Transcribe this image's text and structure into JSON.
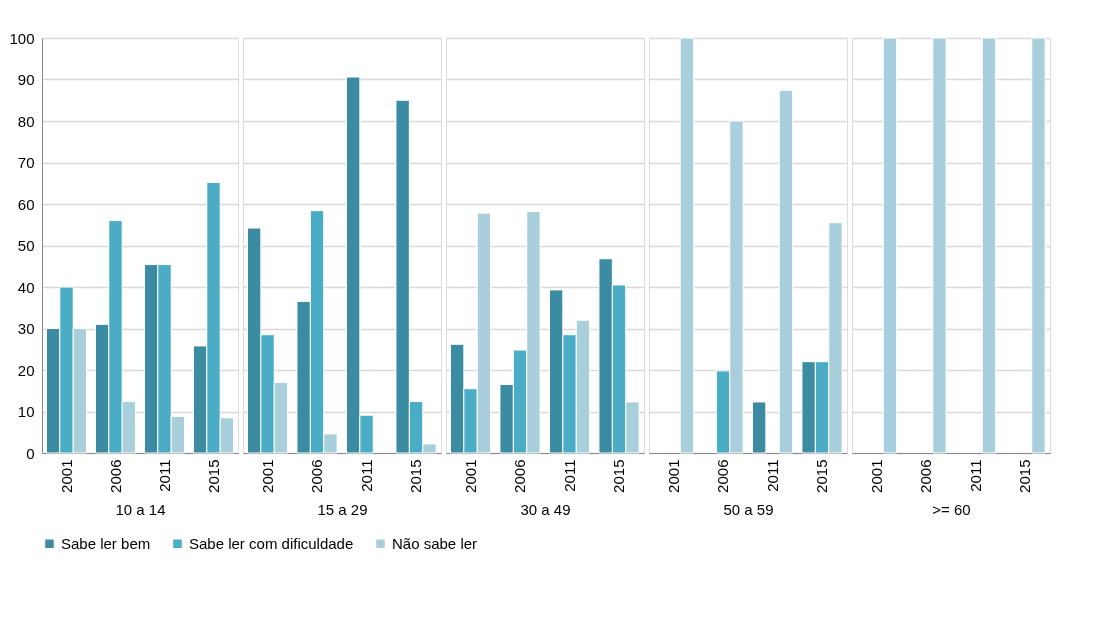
{
  "chart_data": [
    {
      "type": "bar",
      "xlabel": "10 a 14",
      "categories": [
        "2001",
        "2006",
        "2011",
        "2015"
      ],
      "ylim": [
        0,
        100
      ],
      "yticks": [
        0,
        10,
        20,
        30,
        40,
        50,
        60,
        70,
        80,
        90,
        100
      ],
      "grid": "y",
      "legend": "bottom",
      "series": [
        {
          "name": "Sabe ler bem",
          "color": "#3b8ba3",
          "values": [
            30,
            31,
            45.4,
            25.8
          ]
        },
        {
          "name": "Sabe ler com dificuldade",
          "color": "#4bacc6",
          "values": [
            40,
            56,
            45.4,
            65.2
          ]
        },
        {
          "name": "Não sabe ler",
          "color": "#a9cfdd",
          "values": [
            30,
            12.4,
            8.8,
            8.5
          ]
        }
      ]
    },
    {
      "type": "bar",
      "xlabel": "15 a 29",
      "categories": [
        "2001",
        "2006",
        "2011",
        "2015"
      ],
      "ylim": [
        0,
        100
      ],
      "yticks": [
        0,
        10,
        20,
        30,
        40,
        50,
        60,
        70,
        80,
        90,
        100
      ],
      "grid": "y",
      "legend": "bottom",
      "tick_labels": "x",
      "series": [
        {
          "name": "Sabe ler bem",
          "color": "#3b8ba3",
          "values": [
            54.2,
            36.5,
            90.6,
            85
          ]
        },
        {
          "name": "Sabe ler com dificuldade",
          "color": "#4bacc6",
          "values": [
            28.5,
            58.4,
            9.1,
            12.4
          ]
        },
        {
          "name": "Não sabe ler",
          "color": "#a9cfdd",
          "values": [
            17,
            4.6,
            null,
            2.2
          ]
        }
      ]
    },
    {
      "type": "bar",
      "xlabel": "30 a 49",
      "categories": [
        "2001",
        "2006",
        "2011",
        "2015"
      ],
      "ylim": [
        0,
        100
      ],
      "yticks": [
        0,
        10,
        20,
        30,
        40,
        50,
        60,
        70,
        80,
        90,
        100
      ],
      "grid": "y",
      "legend": "bottom",
      "tick_labels": "x",
      "series": [
        {
          "name": "Sabe ler bem",
          "color": "#3b8ba3",
          "values": [
            26.2,
            16.5,
            39.3,
            46.8
          ]
        },
        {
          "name": "Sabe ler com dificuldade",
          "color": "#4bacc6",
          "values": [
            15.5,
            24.8,
            28.5,
            40.5
          ]
        },
        {
          "name": "Não sabe ler",
          "color": "#a9cfdd",
          "values": [
            57.8,
            58.2,
            32,
            12.3
          ]
        }
      ]
    },
    {
      "type": "bar",
      "xlabel": "50 a 59",
      "categories": [
        "2001",
        "2006",
        "2011",
        "2015"
      ],
      "ylim": [
        0,
        100
      ],
      "yticks": [
        0,
        10,
        20,
        30,
        40,
        50,
        60,
        70,
        80,
        90,
        100
      ],
      "grid": "y",
      "legend": "bottom",
      "tick_labels": "x",
      "series": [
        {
          "name": "Sabe ler bem",
          "color": "#3b8ba3",
          "values": [
            null,
            null,
            12.3,
            22
          ]
        },
        {
          "name": "Sabe ler com dificuldade",
          "color": "#4bacc6",
          "values": [
            null,
            19.8,
            null,
            22
          ]
        },
        {
          "name": "Não sabe ler",
          "color": "#a9cfdd",
          "values": [
            100,
            80,
            87.4,
            55.5
          ]
        }
      ]
    },
    {
      "type": "bar",
      "xlabel": ">= 60",
      "categories": [
        "2001",
        "2006",
        "2011",
        "2015"
      ],
      "ylim": [
        0,
        100
      ],
      "yticks": [
        0,
        10,
        20,
        30,
        40,
        50,
        60,
        70,
        80,
        90,
        100
      ],
      "grid": "y",
      "legend": "bottom",
      "tick_labels": "x",
      "series": [
        {
          "name": "Sabe ler bem",
          "color": "#3b8ba3",
          "values": [
            null,
            null,
            null,
            null
          ]
        },
        {
          "name": "Sabe ler com dificuldade",
          "color": "#4bacc6",
          "values": [
            null,
            null,
            null,
            null
          ]
        },
        {
          "name": "Não sabe ler",
          "color": "#a9cfdd",
          "values": [
            100,
            100,
            100,
            100
          ]
        }
      ]
    }
  ]
}
